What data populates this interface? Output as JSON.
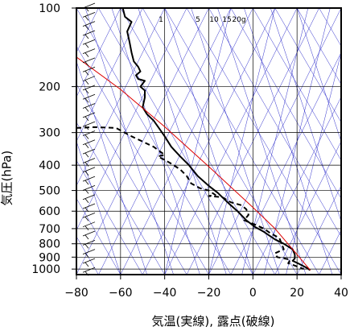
{
  "chart_data": {
    "type": "line",
    "title": "",
    "xlabel": "気温(実線), 露点(破線)",
    "ylabel": "気圧(hPa)",
    "xlim": [
      -80,
      40
    ],
    "ylim": [
      1050,
      100
    ],
    "y_scale": "log",
    "xticks": [
      -80,
      -60,
      -40,
      -20,
      0,
      20,
      40
    ],
    "yticks": [
      1000,
      900,
      800,
      700,
      600,
      500,
      400,
      300,
      200,
      100
    ],
    "mixing_ratio_labels": [
      "1",
      "5",
      "10",
      "15",
      "20g"
    ],
    "series": [
      {
        "style": "solid",
        "color": "#000000",
        "points": [
          [
            -59,
            100
          ],
          [
            -58,
            108
          ],
          [
            -55,
            113
          ],
          [
            -57,
            123
          ],
          [
            -56,
            134
          ],
          [
            -55,
            148
          ],
          [
            -54,
            160
          ],
          [
            -52,
            168
          ],
          [
            -51,
            175
          ],
          [
            -53,
            181
          ],
          [
            -52,
            187
          ],
          [
            -49,
            190
          ],
          [
            -51,
            200
          ],
          [
            -49,
            207
          ],
          [
            -49,
            220
          ],
          [
            -50,
            240
          ],
          [
            -48,
            255
          ],
          [
            -45,
            270
          ],
          [
            -43,
            285
          ],
          [
            -40,
            310
          ],
          [
            -37,
            340
          ],
          [
            -33,
            370
          ],
          [
            -29,
            400
          ],
          [
            -25,
            440
          ],
          [
            -20,
            480
          ],
          [
            -16,
            510
          ],
          [
            -11,
            560
          ],
          [
            -7,
            600
          ],
          [
            -3,
            650
          ],
          [
            1,
            690
          ],
          [
            5,
            720
          ],
          [
            10,
            770
          ],
          [
            14,
            800
          ],
          [
            18,
            840
          ],
          [
            19,
            880
          ],
          [
            19,
            910
          ],
          [
            18,
            930
          ],
          [
            21,
            955
          ],
          [
            24,
            985
          ],
          [
            26,
            1010
          ]
        ]
      },
      {
        "style": "dashed",
        "color": "#000000",
        "points": [
          [
            -80,
            288
          ],
          [
            -72,
            286
          ],
          [
            -62,
            288
          ],
          [
            -55,
            310
          ],
          [
            -45,
            340
          ],
          [
            -40,
            365
          ],
          [
            -43,
            370
          ],
          [
            -38,
            390
          ],
          [
            -33,
            415
          ],
          [
            -30,
            440
          ],
          [
            -28,
            470
          ],
          [
            -24,
            490
          ],
          [
            -20,
            500
          ],
          [
            -17,
            520
          ],
          [
            -20,
            525
          ],
          [
            -14,
            530
          ],
          [
            -10,
            555
          ],
          [
            -5,
            570
          ],
          [
            -3,
            590
          ],
          [
            -2,
            620
          ],
          [
            -4,
            650
          ],
          [
            0,
            670
          ],
          [
            5,
            700
          ],
          [
            8,
            730
          ],
          [
            12,
            760
          ],
          [
            13,
            800
          ],
          [
            14,
            840
          ],
          [
            10,
            870
          ],
          [
            11,
            900
          ],
          [
            17,
            920
          ],
          [
            16,
            950
          ],
          [
            19,
            970
          ],
          [
            23,
            1000
          ]
        ]
      },
      {
        "style": "solid",
        "color": "#dd0000",
        "role": "parcel",
        "points": [
          [
            -81,
            152
          ],
          [
            -60,
            205
          ],
          [
            -40,
            285
          ],
          [
            -20,
            405
          ],
          [
            0,
            580
          ],
          [
            10,
            700
          ],
          [
            20,
            880
          ],
          [
            26,
            1010
          ]
        ]
      }
    ]
  }
}
